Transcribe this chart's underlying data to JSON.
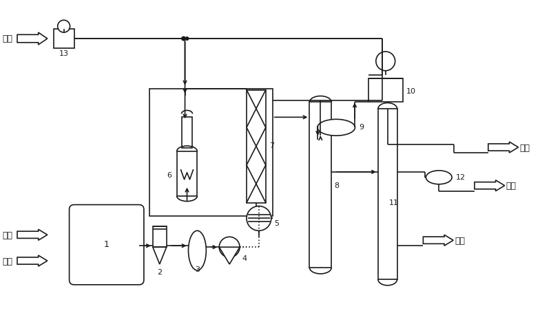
{
  "bg": "#ffffff",
  "lc": "#1a1a1a",
  "lw": 1.2,
  "labels": {
    "h2": "氢气",
    "raw": "原料",
    "solvent_in": "溶剂",
    "tail": "尾气",
    "solvent_out": "溶剂",
    "product": "产品",
    "n1": "1",
    "n2": "2",
    "n3": "3",
    "n4": "4",
    "n5": "5",
    "n6": "6",
    "n7": "7",
    "n8": "8",
    "n9": "9",
    "n10": "10",
    "n11": "11",
    "n12": "12",
    "n13": "13"
  }
}
